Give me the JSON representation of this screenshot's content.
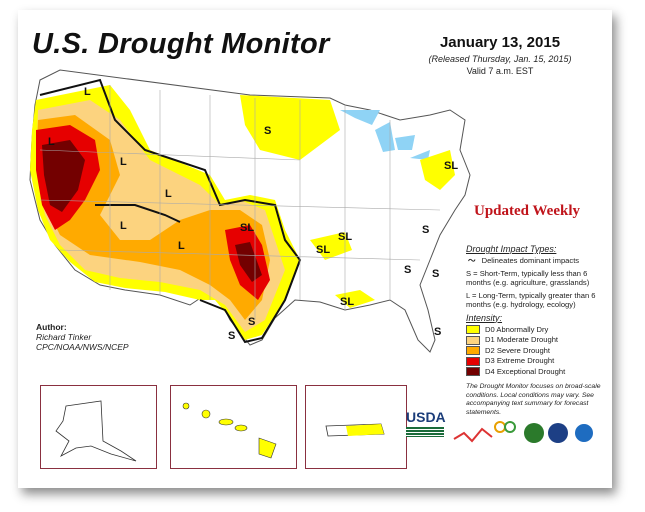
{
  "header": {
    "title": "U.S. Drought Monitor",
    "date": "January 13, 2015",
    "released": "(Released Thursday, Jan. 15, 2015)",
    "valid": "Valid 7 a.m. EST"
  },
  "banner": "Updated Weekly",
  "map_labels": [
    "L",
    "L",
    "L",
    "L",
    "S",
    "SL",
    "SL",
    "SL",
    "S",
    "S",
    "SL",
    "S",
    "SL",
    "L",
    "L",
    "S",
    "S",
    "S",
    "L",
    "S",
    "SL"
  ],
  "legend": {
    "impact_title": "Drought Impact Types:",
    "impact_line": "Delineates dominant impacts",
    "short_term": "S = Short-Term, typically less than 6 months (e.g. agriculture, grasslands)",
    "long_term": "L = Long-Term, typically greater than 6 months (e.g. hydrology, ecology)",
    "intensity_title": "Intensity:",
    "items": [
      {
        "label": "D0 Abnormally Dry",
        "color": "#ffff00"
      },
      {
        "label": "D1 Moderate Drought",
        "color": "#fcd37f"
      },
      {
        "label": "D2 Severe Drought",
        "color": "#ffaa00"
      },
      {
        "label": "D3 Extreme Drought",
        "color": "#e60000"
      },
      {
        "label": "D4 Exceptional Drought",
        "color": "#730000"
      }
    ],
    "note": "The Drought Monitor focuses on broad-scale conditions. Local conditions may vary. See accompanying text summary for forecast statements."
  },
  "author": {
    "heading": "Author:",
    "name": "Richard Tinker",
    "org": "CPC/NOAA/NWS/NCEP"
  },
  "logos": {
    "usda": "USDA"
  }
}
